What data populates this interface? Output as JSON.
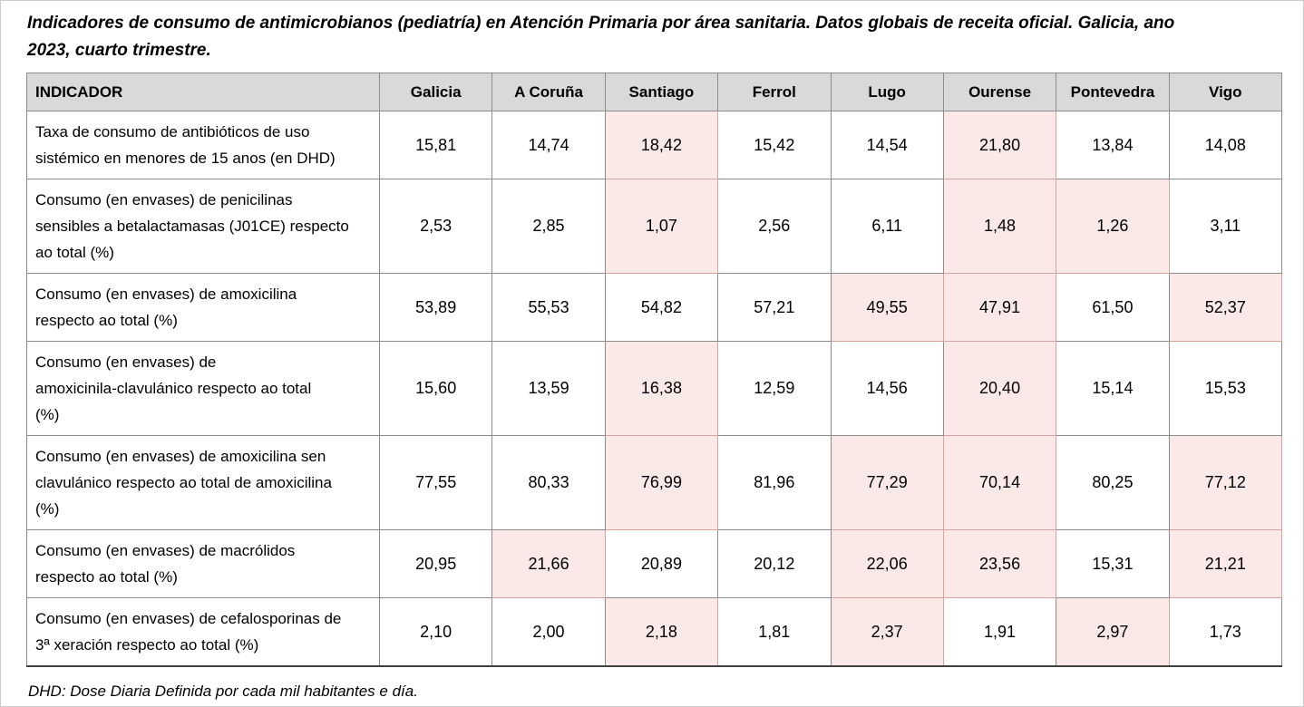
{
  "title_lines": [
    "Indicadores de consumo de antimicrobianos (pediatría) en Atención Primaria por área sanitaria. Datos globais de receita oficial. Galicia, ano",
    "2023, cuarto trimestre."
  ],
  "footnote": "DHD: Dose Diaria Definida por cada mil habitantes e día.",
  "colors": {
    "header_bg": "#d9d9d9",
    "highlight_bg": "#fbe9e8",
    "highlight_border": "#d9a29d",
    "grid_border": "#8c8c8c",
    "table_bottom_border": "#404040",
    "page_border": "#c9c9c9"
  },
  "table": {
    "header": [
      "INDICADOR",
      "Galicia",
      "A Coruña",
      "Santiago",
      "Ferrol",
      "Lugo",
      "Ourense",
      "Pontevedra",
      "Vigo"
    ],
    "rows": [
      {
        "indicator_lines": [
          "Taxa de consumo de antibióticos de uso",
          "sistémico en menores de 15 anos (en DHD)"
        ],
        "values": [
          "15,81",
          "14,74",
          "18,42",
          "15,42",
          "14,54",
          "21,80",
          "13,84",
          "14,08"
        ],
        "highlighted": [
          2,
          5
        ]
      },
      {
        "indicator_lines": [
          "Consumo (en envases) de penicilinas",
          "sensibles a betalactamasas (J01CE) respecto",
          "ao total (%)"
        ],
        "values": [
          "2,53",
          "2,85",
          "1,07",
          "2,56",
          "6,11",
          "1,48",
          "1,26",
          "3,11"
        ],
        "highlighted": [
          2,
          5,
          6
        ]
      },
      {
        "indicator_lines": [
          "Consumo (en envases) de amoxicilina",
          "respecto ao total (%)"
        ],
        "values": [
          "53,89",
          "55,53",
          "54,82",
          "57,21",
          "49,55",
          "47,91",
          "61,50",
          "52,37"
        ],
        "highlighted": [
          4,
          5,
          7
        ]
      },
      {
        "indicator_lines": [
          "Consumo (en envases) de",
          "amoxicinila-clavulánico respecto ao total",
          "(%)"
        ],
        "values": [
          "15,60",
          "13,59",
          "16,38",
          "12,59",
          "14,56",
          "20,40",
          "15,14",
          "15,53"
        ],
        "highlighted": [
          2,
          5
        ]
      },
      {
        "indicator_lines": [
          "Consumo (en envases) de amoxicilina sen",
          "clavulánico respecto ao total de amoxicilina",
          "(%)"
        ],
        "values": [
          "77,55",
          "80,33",
          "76,99",
          "81,96",
          "77,29",
          "70,14",
          "80,25",
          "77,12"
        ],
        "highlighted": [
          2,
          4,
          5,
          7
        ]
      },
      {
        "indicator_lines": [
          "Consumo (en envases) de macrólidos",
          "respecto ao total (%)"
        ],
        "values": [
          "20,95",
          "21,66",
          "20,89",
          "20,12",
          "22,06",
          "23,56",
          "15,31",
          "21,21"
        ],
        "highlighted": [
          1,
          4,
          5,
          7
        ]
      },
      {
        "indicator_lines": [
          "Consumo (en envases) de cefalosporinas de",
          "3ª xeración respecto ao total (%)"
        ],
        "values": [
          "2,10",
          "2,00",
          "2,18",
          "1,81",
          "2,37",
          "1,91",
          "2,97",
          "1,73"
        ],
        "highlighted": [
          2,
          4,
          6
        ]
      }
    ]
  }
}
